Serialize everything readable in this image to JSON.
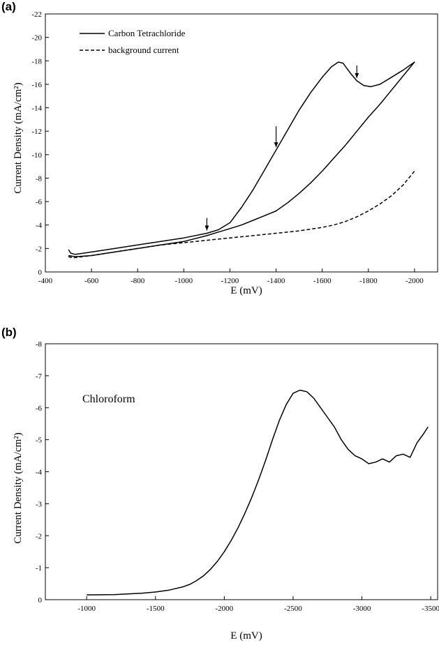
{
  "chart_data": [
    {
      "panel": "(a)",
      "type": "line",
      "xlabel": "E (mV)",
      "ylabel": "Current Density (mA/cm²)",
      "xlim": [
        -400,
        -2100
      ],
      "ylim": [
        0,
        -22
      ],
      "xticks": [
        -400,
        -600,
        -800,
        -1000,
        -1200,
        -1400,
        -1600,
        -1800,
        -2000
      ],
      "yticks": [
        0,
        -2,
        -4,
        -6,
        -8,
        -10,
        -12,
        -14,
        -16,
        -18,
        -20,
        -22
      ],
      "grid": false,
      "legend_position": "top-left",
      "arrows_at_x": [
        -1100,
        -1400,
        -1750
      ],
      "series": [
        {
          "name": "Carbon Tetrachloride",
          "style": "solid",
          "x": [
            -500,
            -510,
            -530,
            -600,
            -700,
            -800,
            -900,
            -1000,
            -1100,
            -1150,
            -1200,
            -1250,
            -1300,
            -1350,
            -1400,
            -1450,
            -1500,
            -1550,
            -1600,
            -1640,
            -1670,
            -1690,
            -1720,
            -1750,
            -1780,
            -1810,
            -1850,
            -1900,
            -1950,
            -2000,
            -1950,
            -1900,
            -1850,
            -1800,
            -1750,
            -1700,
            -1650,
            -1600,
            -1550,
            -1500,
            -1450,
            -1400,
            -1350,
            -1300,
            -1250,
            -1200,
            -1150,
            -1100,
            -1000,
            -900,
            -800,
            -700,
            -600,
            -530,
            -500
          ],
          "y": [
            -1.9,
            -1.6,
            -1.5,
            -1.7,
            -2.0,
            -2.3,
            -2.6,
            -2.9,
            -3.3,
            -3.6,
            -4.2,
            -5.5,
            -7.0,
            -8.7,
            -10.4,
            -12.1,
            -13.8,
            -15.3,
            -16.6,
            -17.5,
            -17.9,
            -17.8,
            -17.0,
            -16.3,
            -15.9,
            -15.8,
            -16.0,
            -16.6,
            -17.2,
            -17.9,
            -16.7,
            -15.5,
            -14.3,
            -13.2,
            -12.0,
            -10.8,
            -9.7,
            -8.6,
            -7.6,
            -6.7,
            -5.9,
            -5.2,
            -4.8,
            -4.4,
            -4.0,
            -3.7,
            -3.4,
            -3.1,
            -2.6,
            -2.3,
            -2.0,
            -1.7,
            -1.4,
            -1.3,
            -1.4
          ]
        },
        {
          "name": "background current",
          "style": "dashed",
          "x": [
            -500,
            -520,
            -600,
            -700,
            -800,
            -900,
            -1000,
            -1100,
            -1200,
            -1300,
            -1400,
            -1500,
            -1600,
            -1650,
            -1700,
            -1750,
            -1800,
            -1850,
            -1900,
            -1950,
            -2000
          ],
          "y": [
            -1.3,
            -1.2,
            -1.4,
            -1.7,
            -2.0,
            -2.3,
            -2.5,
            -2.7,
            -2.9,
            -3.1,
            -3.3,
            -3.5,
            -3.8,
            -4.0,
            -4.3,
            -4.7,
            -5.2,
            -5.8,
            -6.5,
            -7.4,
            -8.6
          ]
        }
      ]
    },
    {
      "panel": "(b)",
      "type": "line",
      "annotation": "Chloroform",
      "xlabel": "E (mV)",
      "ylabel": "Current Density (mA/cm²)",
      "xlim": [
        -700,
        -3550
      ],
      "ylim": [
        0,
        -8
      ],
      "xticks": [
        -1000,
        -1500,
        -2000,
        -2500,
        -3000,
        -3500
      ],
      "yticks": [
        0,
        -1,
        -2,
        -3,
        -4,
        -5,
        -6,
        -7,
        -8
      ],
      "grid": false,
      "series": [
        {
          "style": "solid",
          "x": [
            -1000,
            -1200,
            -1400,
            -1500,
            -1600,
            -1700,
            -1750,
            -1800,
            -1850,
            -1900,
            -1950,
            -2000,
            -2050,
            -2100,
            -2150,
            -2200,
            -2250,
            -2300,
            -2350,
            -2400,
            -2450,
            -2500,
            -2550,
            -2600,
            -2650,
            -2700,
            -2750,
            -2800,
            -2850,
            -2900,
            -2950,
            -3000,
            -3050,
            -3100,
            -3150,
            -3200,
            -3250,
            -3300,
            -3350,
            -3400,
            -3450,
            -3480
          ],
          "y": [
            -0.15,
            -0.16,
            -0.2,
            -0.24,
            -0.3,
            -0.4,
            -0.48,
            -0.6,
            -0.75,
            -0.95,
            -1.2,
            -1.5,
            -1.85,
            -2.25,
            -2.7,
            -3.2,
            -3.75,
            -4.35,
            -5.0,
            -5.6,
            -6.1,
            -6.45,
            -6.55,
            -6.5,
            -6.3,
            -6.0,
            -5.7,
            -5.4,
            -5.0,
            -4.7,
            -4.5,
            -4.4,
            -4.25,
            -4.3,
            -4.4,
            -4.3,
            -4.5,
            -4.55,
            -4.45,
            -4.9,
            -5.2,
            -5.4
          ]
        }
      ]
    }
  ]
}
